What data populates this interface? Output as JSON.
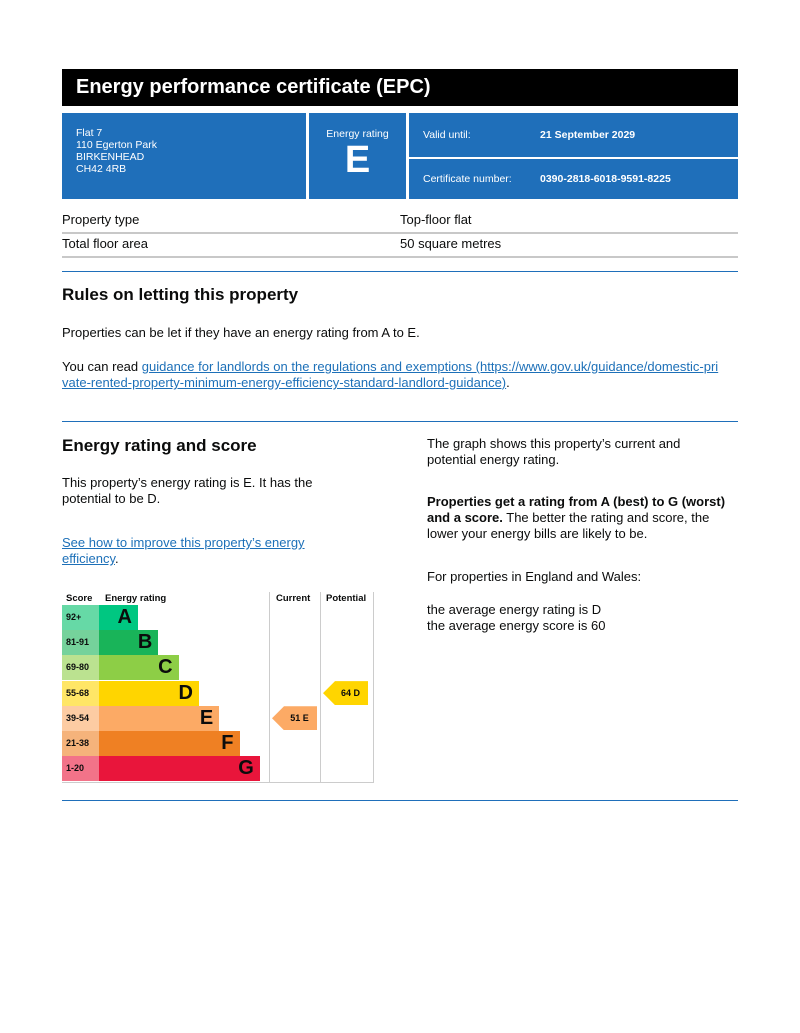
{
  "title": "Energy performance certificate (EPC)",
  "address": [
    "Flat 7",
    "110 Egerton Park",
    "BIRKENHEAD",
    "CH42 4RB"
  ],
  "energy_rating": {
    "label": "Energy rating",
    "value": "E"
  },
  "valid_until": {
    "label": "Valid until:",
    "value": "21 September 2029"
  },
  "certificate_number": {
    "label": "Certificate number:",
    "value": "0390-2818-6018-9591-8225"
  },
  "property": [
    {
      "label": "Property type",
      "value": "Top-floor flat"
    },
    {
      "label": "Total floor area",
      "value": "50 square metres"
    }
  ],
  "rules": {
    "heading": "Rules on letting this property",
    "p1": "Properties can be let if they have an energy rating from A to E.",
    "p2_prefix": "You can read ",
    "p2_link": "guidance for landlords on the regulations and exemptions (https://www.gov.uk/guidance/domestic-private-rented-property-minimum-energy-efficiency-standard-landlord-guidance)",
    "p2_suffix": "."
  },
  "rating_section": {
    "heading": "Energy rating and score",
    "p1": "This property’s energy rating is E. It has the potential to be D.",
    "link": "See how to improve this property’s energy efficiency",
    "link_suffix": ".",
    "right_p1": "The graph shows this property’s current and potential energy rating.",
    "right_bold": "Properties get a rating from A (best) to G (worst) and a score.",
    "right_p2": " The better the rating and score, the lower your energy bills are likely to be.",
    "right_p3": "For properties in England and Wales:",
    "right_p4": "the average energy rating is D",
    "right_p5": "the average energy score is 60"
  },
  "chart_data": {
    "type": "table",
    "headers": [
      "Score",
      "Energy rating",
      "Current",
      "Potential"
    ],
    "bands": [
      {
        "score": "92+",
        "letter": "A",
        "color": "#00c781",
        "score_color": "#66d9a6"
      },
      {
        "score": "81-91",
        "letter": "B",
        "color": "#19b459",
        "score_color": "#75d29b"
      },
      {
        "score": "69-80",
        "letter": "C",
        "color": "#8dce46",
        "score_color": "#bbe290"
      },
      {
        "score": "55-68",
        "letter": "D",
        "color": "#ffd500",
        "score_color": "#ffe666"
      },
      {
        "score": "39-54",
        "letter": "E",
        "color": "#fcaa65",
        "score_color": "#fdcca3"
      },
      {
        "score": "21-38",
        "letter": "F",
        "color": "#ef8023",
        "score_color": "#f5b37b"
      },
      {
        "score": "1-20",
        "letter": "G",
        "color": "#e9153b",
        "score_color": "#f27389"
      }
    ],
    "current": {
      "score": 51,
      "band": "E",
      "label": "51 E"
    },
    "potential": {
      "score": 64,
      "band": "D",
      "label": "64 D"
    }
  }
}
